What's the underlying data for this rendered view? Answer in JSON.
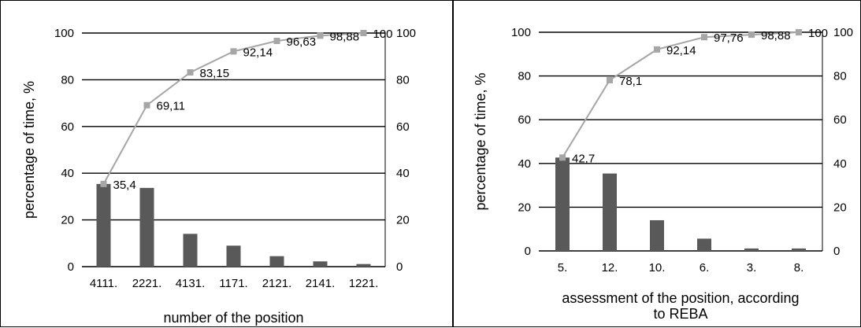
{
  "chart_data": [
    {
      "type": "bar",
      "categories": [
        "4111.",
        "2221.",
        "4131.",
        "1171.",
        "2121.",
        "2141.",
        "1221."
      ],
      "series": [
        {
          "type": "bar",
          "values": [
            35.4,
            33.71,
            14.04,
            8.99,
            4.49,
            2.25,
            1.12
          ]
        },
        {
          "type": "line",
          "values": [
            35.4,
            69.11,
            83.15,
            92.14,
            96.63,
            98.88,
            100
          ]
        }
      ],
      "data_labels": [
        "35,4",
        "69,11",
        "83,15",
        "92,14",
        "96,63",
        "98,88",
        "100"
      ],
      "title": "",
      "xlabel": "number of the position",
      "ylabel": "percentage of time, %",
      "ylim": [
        0,
        100
      ],
      "yticks": [
        "0",
        "20",
        "40",
        "60",
        "80",
        "100"
      ],
      "y2ticks": [
        "0",
        "20",
        "40",
        "60",
        "80",
        "100"
      ],
      "grid": true,
      "colors": {
        "bar": "#595959",
        "line": "#a6a6a6"
      }
    },
    {
      "type": "bar",
      "categories": [
        "5.",
        "12.",
        "10.",
        "6.",
        "3.",
        "8."
      ],
      "series": [
        {
          "type": "bar",
          "values": [
            42.7,
            35.4,
            14.04,
            5.62,
            1.12,
            1.12
          ]
        },
        {
          "type": "line",
          "values": [
            42.7,
            78.1,
            92.14,
            97.76,
            98.88,
            100
          ]
        }
      ],
      "data_labels": [
        "42,7",
        "78,1",
        "92,14",
        "97,76",
        "98,88",
        "100"
      ],
      "title": "",
      "xlabel": "assessment of the position, according to REBA",
      "xlabel_lines": [
        "assessment of the position, according",
        "to REBA"
      ],
      "ylabel": "percentage of time, %",
      "ylim": [
        0,
        100
      ],
      "yticks": [
        "0",
        "20",
        "40",
        "60",
        "80",
        "100"
      ],
      "y2ticks": [
        "0",
        "20",
        "40",
        "60",
        "80",
        "100"
      ],
      "grid": true,
      "colors": {
        "bar": "#595959",
        "line": "#a6a6a6"
      }
    }
  ]
}
